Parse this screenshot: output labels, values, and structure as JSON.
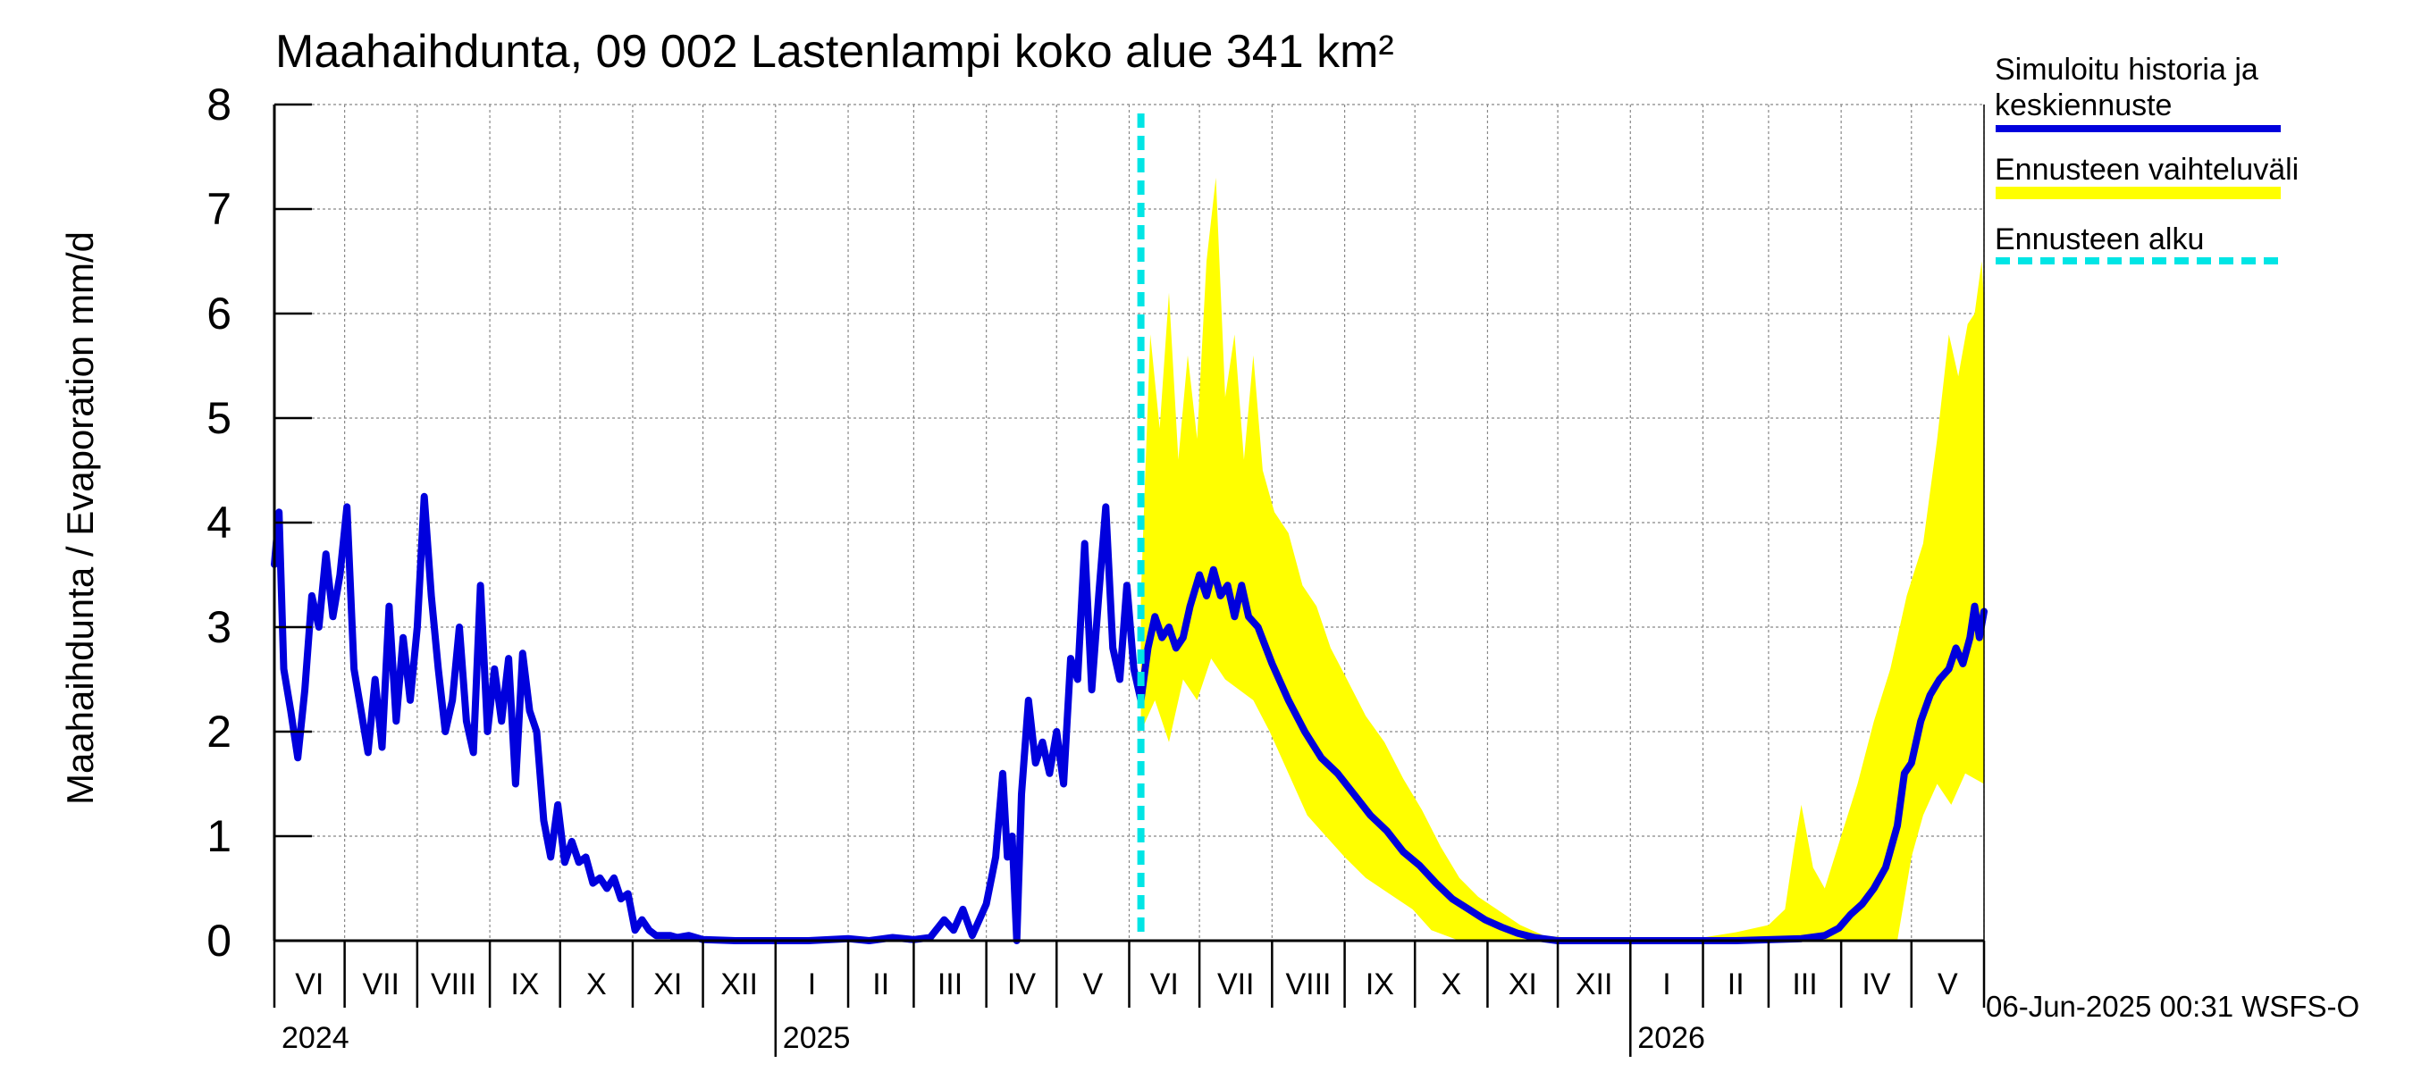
{
  "chart_data": {
    "type": "line",
    "title": "Maahaihdunta, 09 002 Lastenlampi koko alue 341 km²",
    "ylabel": "Maahaihdunta / Evaporation   mm/d",
    "xlabel": "",
    "ylim": [
      0,
      8
    ],
    "xlim": [
      "2024-06-01",
      "2026-06-01"
    ],
    "y_ticks": [
      "0",
      "1",
      "2",
      "3",
      "4",
      "5",
      "6",
      "7",
      "8"
    ],
    "month_labels": [
      "VI",
      "VII",
      "VIII",
      "IX",
      "X",
      "XI",
      "XII",
      "I",
      "II",
      "III",
      "IV",
      "V",
      "VI",
      "VII",
      "VIII",
      "IX",
      "X",
      "XI",
      "XII",
      "I",
      "II",
      "III",
      "IV",
      "V"
    ],
    "year_labels": [
      "2024",
      "2025",
      "2026"
    ],
    "forecast_start": "2025-06-06",
    "grid": true,
    "legend_position": "right",
    "legend": [
      {
        "label": "Simuloitu historia ja keskiennuste",
        "color": "#0000dd"
      },
      {
        "label": "Ennusteen vaihteluväli",
        "color": "#ffff00"
      },
      {
        "label": "Ennusteen alku",
        "color": "#00e5e5"
      }
    ],
    "series": [
      {
        "name": "Simuloitu historia ja keskiennuste",
        "color": "#0000dd",
        "points": [
          [
            "2024-06-01",
            3.6
          ],
          [
            "2024-06-03",
            4.1
          ],
          [
            "2024-06-05",
            2.6
          ],
          [
            "2024-06-08",
            2.2
          ],
          [
            "2024-06-11",
            1.75
          ],
          [
            "2024-06-14",
            2.4
          ],
          [
            "2024-06-17",
            3.3
          ],
          [
            "2024-06-20",
            3.0
          ],
          [
            "2024-06-23",
            3.7
          ],
          [
            "2024-06-26",
            3.1
          ],
          [
            "2024-06-29",
            3.5
          ],
          [
            "2024-07-02",
            4.15
          ],
          [
            "2024-07-05",
            2.6
          ],
          [
            "2024-07-08",
            2.2
          ],
          [
            "2024-07-11",
            1.8
          ],
          [
            "2024-07-14",
            2.5
          ],
          [
            "2024-07-17",
            1.85
          ],
          [
            "2024-07-20",
            3.2
          ],
          [
            "2024-07-23",
            2.1
          ],
          [
            "2024-07-26",
            2.9
          ],
          [
            "2024-07-29",
            2.3
          ],
          [
            "2024-08-01",
            3.0
          ],
          [
            "2024-08-04",
            4.25
          ],
          [
            "2024-08-07",
            3.3
          ],
          [
            "2024-08-10",
            2.6
          ],
          [
            "2024-08-13",
            2.0
          ],
          [
            "2024-08-16",
            2.3
          ],
          [
            "2024-08-19",
            3.0
          ],
          [
            "2024-08-22",
            2.1
          ],
          [
            "2024-08-25",
            1.8
          ],
          [
            "2024-08-28",
            3.4
          ],
          [
            "2024-08-31",
            2.0
          ],
          [
            "2024-09-03",
            2.6
          ],
          [
            "2024-09-06",
            2.1
          ],
          [
            "2024-09-09",
            2.7
          ],
          [
            "2024-09-12",
            1.5
          ],
          [
            "2024-09-15",
            2.75
          ],
          [
            "2024-09-18",
            2.2
          ],
          [
            "2024-09-21",
            2.0
          ],
          [
            "2024-09-24",
            1.15
          ],
          [
            "2024-09-27",
            0.8
          ],
          [
            "2024-09-30",
            1.3
          ],
          [
            "2024-10-03",
            0.75
          ],
          [
            "2024-10-06",
            0.95
          ],
          [
            "2024-10-09",
            0.75
          ],
          [
            "2024-10-12",
            0.8
          ],
          [
            "2024-10-15",
            0.55
          ],
          [
            "2024-10-18",
            0.6
          ],
          [
            "2024-10-21",
            0.5
          ],
          [
            "2024-10-24",
            0.6
          ],
          [
            "2024-10-27",
            0.4
          ],
          [
            "2024-10-30",
            0.45
          ],
          [
            "2024-11-02",
            0.1
          ],
          [
            "2024-11-05",
            0.2
          ],
          [
            "2024-11-08",
            0.1
          ],
          [
            "2024-11-11",
            0.05
          ],
          [
            "2024-11-14",
            0.05
          ],
          [
            "2024-11-17",
            0.05
          ],
          [
            "2024-11-20",
            0.03
          ],
          [
            "2024-11-25",
            0.05
          ],
          [
            "2024-12-01",
            0.01
          ],
          [
            "2024-12-15",
            0.0
          ],
          [
            "2025-01-15",
            0.0
          ],
          [
            "2025-02-01",
            0.02
          ],
          [
            "2025-02-10",
            0.0
          ],
          [
            "2025-02-20",
            0.03
          ],
          [
            "2025-03-01",
            0.01
          ],
          [
            "2025-03-08",
            0.03
          ],
          [
            "2025-03-14",
            0.2
          ],
          [
            "2025-03-18",
            0.1
          ],
          [
            "2025-03-22",
            0.3
          ],
          [
            "2025-03-26",
            0.05
          ],
          [
            "2025-03-29",
            0.2
          ],
          [
            "2025-04-01",
            0.35
          ],
          [
            "2025-04-05",
            0.8
          ],
          [
            "2025-04-08",
            1.6
          ],
          [
            "2025-04-10",
            0.8
          ],
          [
            "2025-04-12",
            1.0
          ],
          [
            "2025-04-14",
            0.0
          ],
          [
            "2025-04-16",
            1.4
          ],
          [
            "2025-04-19",
            2.3
          ],
          [
            "2025-04-22",
            1.7
          ],
          [
            "2025-04-25",
            1.9
          ],
          [
            "2025-04-28",
            1.6
          ],
          [
            "2025-05-01",
            2.0
          ],
          [
            "2025-05-04",
            1.5
          ],
          [
            "2025-05-07",
            2.7
          ],
          [
            "2025-05-10",
            2.5
          ],
          [
            "2025-05-13",
            3.8
          ],
          [
            "2025-05-16",
            2.4
          ],
          [
            "2025-05-19",
            3.3
          ],
          [
            "2025-05-22",
            4.15
          ],
          [
            "2025-05-25",
            2.8
          ],
          [
            "2025-05-28",
            2.5
          ],
          [
            "2025-05-31",
            3.4
          ],
          [
            "2025-06-03",
            2.6
          ],
          [
            "2025-06-06",
            2.3
          ],
          [
            "2025-06-09",
            2.8
          ],
          [
            "2025-06-12",
            3.1
          ],
          [
            "2025-06-15",
            2.9
          ],
          [
            "2025-06-18",
            3.0
          ],
          [
            "2025-06-21",
            2.8
          ],
          [
            "2025-06-24",
            2.9
          ],
          [
            "2025-06-27",
            3.2
          ],
          [
            "2025-07-01",
            3.5
          ],
          [
            "2025-07-04",
            3.3
          ],
          [
            "2025-07-07",
            3.55
          ],
          [
            "2025-07-10",
            3.3
          ],
          [
            "2025-07-13",
            3.4
          ],
          [
            "2025-07-16",
            3.1
          ],
          [
            "2025-07-19",
            3.4
          ],
          [
            "2025-07-22",
            3.1
          ],
          [
            "2025-07-26",
            3.0
          ],
          [
            "2025-08-01",
            2.65
          ],
          [
            "2025-08-08",
            2.3
          ],
          [
            "2025-08-15",
            2.0
          ],
          [
            "2025-08-22",
            1.75
          ],
          [
            "2025-08-29",
            1.6
          ],
          [
            "2025-09-05",
            1.4
          ],
          [
            "2025-09-12",
            1.2
          ],
          [
            "2025-09-19",
            1.05
          ],
          [
            "2025-09-26",
            0.85
          ],
          [
            "2025-10-03",
            0.72
          ],
          [
            "2025-10-10",
            0.55
          ],
          [
            "2025-10-17",
            0.4
          ],
          [
            "2025-10-24",
            0.3
          ],
          [
            "2025-10-31",
            0.2
          ],
          [
            "2025-11-07",
            0.13
          ],
          [
            "2025-11-14",
            0.07
          ],
          [
            "2025-11-21",
            0.03
          ],
          [
            "2025-12-01",
            0.0
          ],
          [
            "2026-01-15",
            0.0
          ],
          [
            "2026-02-15",
            0.0
          ],
          [
            "2026-03-15",
            0.02
          ],
          [
            "2026-03-25",
            0.05
          ],
          [
            "2026-03-31",
            0.12
          ],
          [
            "2026-04-05",
            0.25
          ],
          [
            "2026-04-10",
            0.35
          ],
          [
            "2026-04-15",
            0.5
          ],
          [
            "2026-04-20",
            0.7
          ],
          [
            "2026-04-25",
            1.1
          ],
          [
            "2026-04-28",
            1.6
          ],
          [
            "2026-05-01",
            1.7
          ],
          [
            "2026-05-05",
            2.1
          ],
          [
            "2026-05-09",
            2.35
          ],
          [
            "2026-05-13",
            2.5
          ],
          [
            "2026-05-17",
            2.6
          ],
          [
            "2026-05-20",
            2.8
          ],
          [
            "2026-05-23",
            2.65
          ],
          [
            "2026-05-26",
            2.9
          ],
          [
            "2026-05-28",
            3.2
          ],
          [
            "2026-05-30",
            2.9
          ],
          [
            "2026-06-01",
            3.15
          ]
        ]
      },
      {
        "name": "Ennusteen vaihteluväli",
        "color": "#ffff00",
        "upper": [
          [
            "2025-06-06",
            3.3
          ],
          [
            "2025-06-10",
            5.8
          ],
          [
            "2025-06-14",
            4.9
          ],
          [
            "2025-06-18",
            6.2
          ],
          [
            "2025-06-22",
            4.6
          ],
          [
            "2025-06-26",
            5.6
          ],
          [
            "2025-06-30",
            4.8
          ],
          [
            "2025-07-04",
            6.5
          ],
          [
            "2025-07-08",
            7.3
          ],
          [
            "2025-07-12",
            5.2
          ],
          [
            "2025-07-16",
            5.8
          ],
          [
            "2025-07-20",
            4.6
          ],
          [
            "2025-07-24",
            5.6
          ],
          [
            "2025-07-28",
            4.5
          ],
          [
            "2025-08-02",
            4.1
          ],
          [
            "2025-08-08",
            3.9
          ],
          [
            "2025-08-14",
            3.4
          ],
          [
            "2025-08-20",
            3.2
          ],
          [
            "2025-08-26",
            2.8
          ],
          [
            "2025-09-02",
            2.5
          ],
          [
            "2025-09-10",
            2.15
          ],
          [
            "2025-09-18",
            1.9
          ],
          [
            "2025-09-26",
            1.55
          ],
          [
            "2025-10-04",
            1.25
          ],
          [
            "2025-10-12",
            0.9
          ],
          [
            "2025-10-20",
            0.6
          ],
          [
            "2025-10-28",
            0.42
          ],
          [
            "2025-11-05",
            0.3
          ],
          [
            "2025-11-15",
            0.15
          ],
          [
            "2025-11-25",
            0.05
          ],
          [
            "2025-12-10",
            0.02
          ],
          [
            "2026-01-15",
            0.02
          ],
          [
            "2026-02-01",
            0.03
          ],
          [
            "2026-02-15",
            0.08
          ],
          [
            "2026-03-01",
            0.15
          ],
          [
            "2026-03-08",
            0.3
          ],
          [
            "2026-03-12",
            0.9
          ],
          [
            "2026-03-15",
            1.3
          ],
          [
            "2026-03-20",
            0.7
          ],
          [
            "2026-03-25",
            0.5
          ],
          [
            "2026-04-01",
            1.0
          ],
          [
            "2026-04-08",
            1.5
          ],
          [
            "2026-04-15",
            2.1
          ],
          [
            "2026-04-22",
            2.6
          ],
          [
            "2026-04-29",
            3.3
          ],
          [
            "2026-05-06",
            3.8
          ],
          [
            "2026-05-12",
            4.8
          ],
          [
            "2026-05-17",
            5.8
          ],
          [
            "2026-05-21",
            5.4
          ],
          [
            "2026-05-25",
            5.9
          ],
          [
            "2026-05-28",
            6.0
          ],
          [
            "2026-05-31",
            6.5
          ],
          [
            "2026-06-01",
            6.1
          ]
        ],
        "lower": [
          [
            "2025-06-06",
            2.0
          ],
          [
            "2025-06-12",
            2.3
          ],
          [
            "2025-06-18",
            1.9
          ],
          [
            "2025-06-24",
            2.5
          ],
          [
            "2025-06-30",
            2.3
          ],
          [
            "2025-07-06",
            2.7
          ],
          [
            "2025-07-12",
            2.5
          ],
          [
            "2025-07-18",
            2.4
          ],
          [
            "2025-07-24",
            2.3
          ],
          [
            "2025-07-31",
            2.0
          ],
          [
            "2025-08-08",
            1.6
          ],
          [
            "2025-08-16",
            1.2
          ],
          [
            "2025-08-24",
            1.0
          ],
          [
            "2025-09-01",
            0.8
          ],
          [
            "2025-09-10",
            0.6
          ],
          [
            "2025-09-20",
            0.45
          ],
          [
            "2025-09-30",
            0.3
          ],
          [
            "2025-10-08",
            0.1
          ],
          [
            "2025-10-20",
            0.0
          ],
          [
            "2026-04-25",
            0.0
          ],
          [
            "2026-05-01",
            0.8
          ],
          [
            "2026-05-06",
            1.2
          ],
          [
            "2026-05-12",
            1.5
          ],
          [
            "2026-05-18",
            1.3
          ],
          [
            "2026-05-24",
            1.6
          ],
          [
            "2026-06-01",
            1.5
          ]
        ]
      }
    ]
  },
  "footer": "06-Jun-2025 00:31 WSFS-O"
}
